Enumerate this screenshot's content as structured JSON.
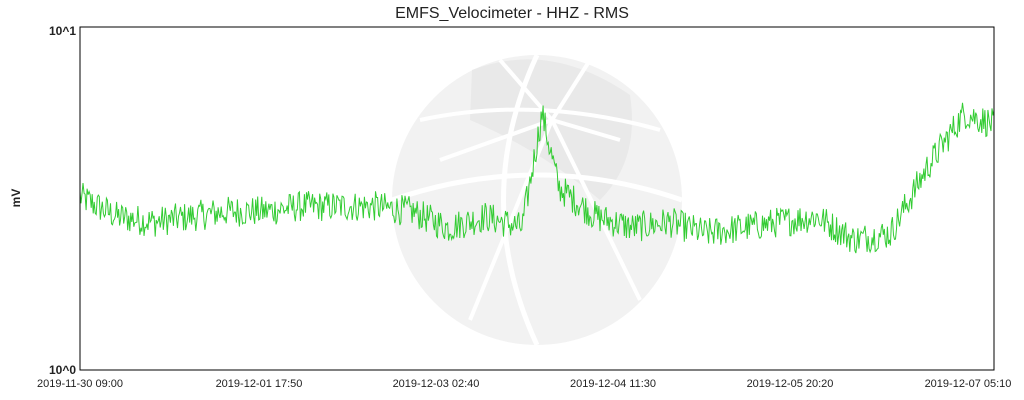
{
  "chart_data": {
    "type": "line",
    "title": "EMFS_Velocimeter - HHZ - RMS",
    "ylabel": "mV",
    "xlabel": "",
    "yscale": "log",
    "ylim": [
      1,
      10
    ],
    "ytick_labels": [
      "10^1",
      "10^0"
    ],
    "x_tick_labels": [
      "2019-11-30 09:00",
      "2019-12-01 17:50",
      "2019-12-03 02:40",
      "2019-12-04 11:30",
      "2019-12-05 20:20",
      "2019-12-07 05:10"
    ],
    "xlim": [
      "2019-11-30 09:00",
      "2019-12-07 05:10"
    ],
    "grid": false,
    "line_color": "#33cc33",
    "series": [
      {
        "x": [
          "2019-11-30 09:00",
          "2019-11-30 15:37",
          "2019-11-30 22:14",
          "2019-12-01 04:51",
          "2019-12-01 11:28",
          "2019-12-01 18:05",
          "2019-12-02 00:42",
          "2019-12-02 07:19",
          "2019-12-02 13:56",
          "2019-12-02 20:33",
          "2019-12-03 03:10",
          "2019-12-03 09:47",
          "2019-12-03 16:24",
          "2019-12-03 20:00",
          "2019-12-03 23:00",
          "2019-12-04 05:38",
          "2019-12-04 12:15",
          "2019-12-04 18:52",
          "2019-12-05 01:29",
          "2019-12-05 08:06",
          "2019-12-05 14:43",
          "2019-12-05 21:20",
          "2019-12-06 03:57",
          "2019-12-06 10:34",
          "2019-12-06 17:11",
          "2019-12-06 23:48",
          "2019-12-07 05:10"
        ],
        "y": [
          3.2,
          2.8,
          2.7,
          2.8,
          2.9,
          2.9,
          3.0,
          3.0,
          3.0,
          2.9,
          2.6,
          2.8,
          2.6,
          5.6,
          3.4,
          2.8,
          2.6,
          2.7,
          2.5,
          2.6,
          2.7,
          2.8,
          2.4,
          2.5,
          3.9,
          5.6,
          5.2
        ]
      }
    ]
  }
}
